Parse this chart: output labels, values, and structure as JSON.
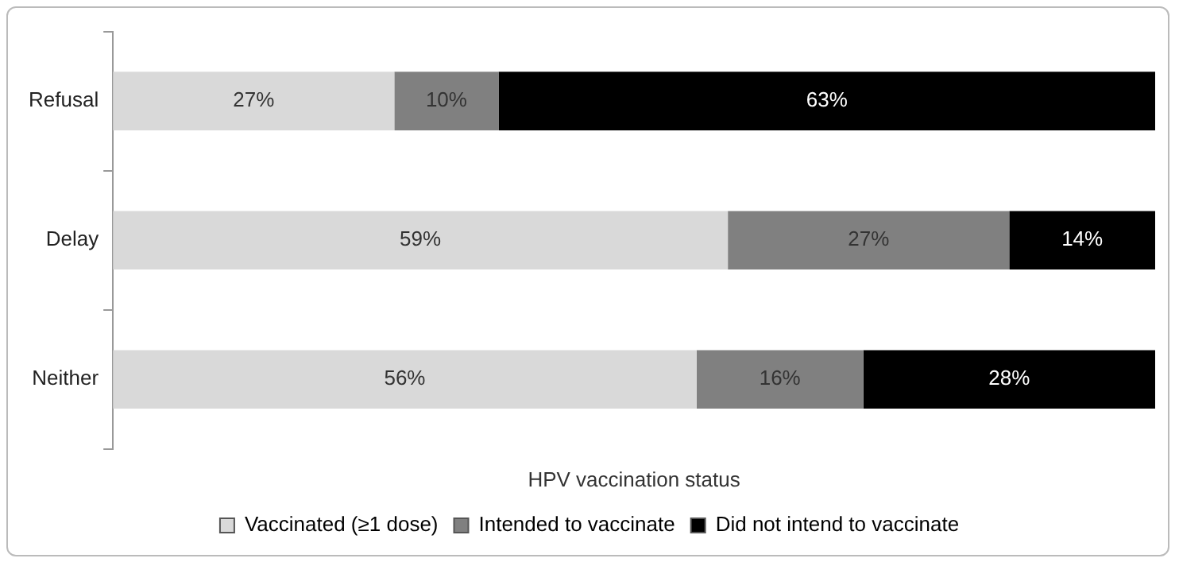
{
  "chart_data": {
    "type": "bar",
    "orientation": "horizontal",
    "stacked": true,
    "categories": [
      "Refusal",
      "Delay",
      "Neither"
    ],
    "series": [
      {
        "name": "Vaccinated (≥1 dose)",
        "color": "#d9d9d9",
        "values": [
          27,
          59,
          56
        ],
        "value_labels": [
          "27%",
          "59%",
          "56%"
        ]
      },
      {
        "name": "Intended to vaccinate",
        "color": "#808080",
        "values": [
          10,
          27,
          16
        ],
        "value_labels": [
          "10%",
          "27%",
          "16%"
        ]
      },
      {
        "name": "Did not intend to vaccinate",
        "color": "#000000",
        "values": [
          63,
          14,
          28
        ],
        "value_labels": [
          "63%",
          "14%",
          "28%"
        ]
      }
    ],
    "xlabel": "HPV vaccination status",
    "legend": "bottom",
    "tick_labels": "y",
    "grid": false
  }
}
